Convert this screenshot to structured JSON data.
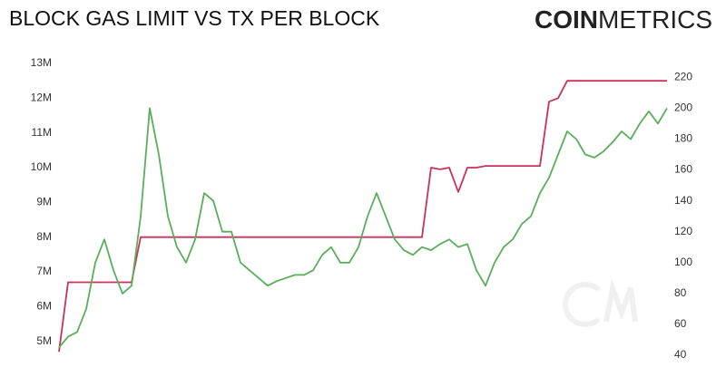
{
  "chart_data": {
    "type": "line",
    "title": "BLOCK GAS LIMIT VS TX PER BLOCK",
    "brand": {
      "bold": "COIN",
      "light": "METRICS"
    },
    "categories": [
      null,
      null,
      null,
      null,
      null,
      null,
      null,
      null,
      null,
      null,
      null,
      null,
      null,
      null,
      null,
      null,
      null,
      null,
      null,
      null,
      null,
      null,
      null,
      null,
      null,
      null,
      null,
      null,
      null,
      null,
      null,
      null,
      null,
      null,
      null,
      null,
      null,
      null,
      null,
      null,
      null,
      null,
      null,
      null,
      null,
      null,
      null,
      null,
      null,
      null,
      null,
      null,
      null,
      null,
      null,
      null,
      null,
      null,
      null,
      null,
      null,
      null,
      null,
      null,
      null,
      null,
      null,
      null
    ],
    "series": [
      {
        "name": "Block Gas Limit",
        "color": "#c8335a",
        "values": [
          4700000,
          6700000,
          6700000,
          6700000,
          6700000,
          6700000,
          6700000,
          6700000,
          6700000,
          8000000,
          8000000,
          8000000,
          8000000,
          8000000,
          8000000,
          8000000,
          8000000,
          8000000,
          8000000,
          8000000,
          8000000,
          8000000,
          8000000,
          8000000,
          8000000,
          8000000,
          8000000,
          8000000,
          8000000,
          8000000,
          8000000,
          8000000,
          8000000,
          8000000,
          8000000,
          8000000,
          8000000,
          8000000,
          8000000,
          8000000,
          8000000,
          10000000,
          9950000,
          10000000,
          9300000,
          10000000,
          10000000,
          10050000,
          10050000,
          10050000,
          10050000,
          10050000,
          10050000,
          10050000,
          11900000,
          12000000,
          12500000,
          12500000,
          12500000,
          12500000,
          12500000,
          12500000,
          12500000,
          12500000,
          12500000,
          12500000,
          12500000,
          12500000
        ]
      },
      {
        "name": "Tx Per Block",
        "color": "#5aae5a",
        "axis": "y2",
        "values": [
          45,
          52,
          55,
          70,
          100,
          115,
          95,
          80,
          85,
          130,
          200,
          170,
          130,
          110,
          100,
          115,
          145,
          140,
          120,
          120,
          100,
          95,
          90,
          85,
          88,
          90,
          92,
          92,
          95,
          105,
          110,
          100,
          100,
          110,
          130,
          145,
          130,
          115,
          108,
          105,
          110,
          108,
          112,
          115,
          110,
          112,
          95,
          85,
          100,
          110,
          115,
          125,
          130,
          145,
          155,
          170,
          185,
          180,
          170,
          168,
          172,
          178,
          185,
          180,
          190,
          198,
          190,
          200
        ]
      }
    ],
    "ylim": [
      4600000,
      13000000
    ],
    "yticks": [
      {
        "value": 5000000,
        "label": "5M"
      },
      {
        "value": 6000000,
        "label": "6M"
      },
      {
        "value": 7000000,
        "label": "7M"
      },
      {
        "value": 8000000,
        "label": "8M"
      },
      {
        "value": 9000000,
        "label": "9M"
      },
      {
        "value": 10000000,
        "label": "10M"
      },
      {
        "value": 11000000,
        "label": "11M"
      },
      {
        "value": 12000000,
        "label": "12M"
      },
      {
        "value": 13000000,
        "label": "13M"
      }
    ],
    "y2lim": [
      40,
      229
    ],
    "y2ticks": [
      40,
      60,
      80,
      100,
      120,
      140,
      160,
      180,
      200,
      220
    ],
    "grid": false
  }
}
